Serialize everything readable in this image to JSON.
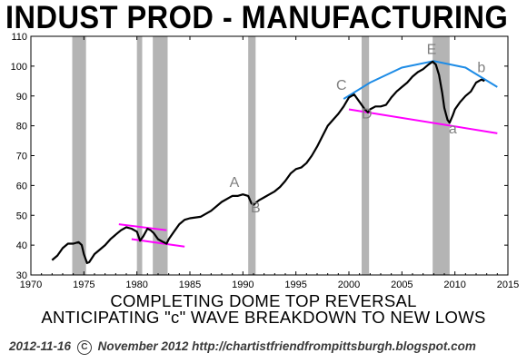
{
  "title": "INDUST PROD - MANUFACTURING",
  "captions": [
    "COMPLETING DOME TOP REVERSAL",
    "ANTICIPATING \"c\" WAVE BREAKDOWN TO NEW LOWS"
  ],
  "footer": {
    "date": "2012-11-16",
    "copyright_symbol": "C",
    "text": "November 2012  http://chartistfriendfrompittsburgh.blogspot.com"
  },
  "colors": {
    "line": "#000000",
    "recession": "#b4b4b4",
    "trendline": "#ff00ff",
    "dome": "#1e8ce6",
    "wave_label": "#808080"
  },
  "chart_data": {
    "type": "line",
    "xlim": [
      1970,
      2015
    ],
    "ylim": [
      30,
      110
    ],
    "x_ticks": [
      1970,
      1975,
      1980,
      1985,
      1990,
      1995,
      2000,
      2005,
      2010,
      2015
    ],
    "y_ticks": [
      30,
      40,
      50,
      60,
      70,
      80,
      90,
      100,
      110
    ],
    "grid": false,
    "series": [
      {
        "values": [
          [
            1972.0,
            35
          ],
          [
            1972.5,
            36.5
          ],
          [
            1973.0,
            39
          ],
          [
            1973.5,
            40.5
          ],
          [
            1974.0,
            40.5
          ],
          [
            1974.5,
            41
          ],
          [
            1974.8,
            40
          ],
          [
            1975.0,
            37
          ],
          [
            1975.3,
            34
          ],
          [
            1975.5,
            34.3
          ],
          [
            1976.0,
            37
          ],
          [
            1976.5,
            38.5
          ],
          [
            1977.0,
            40
          ],
          [
            1977.5,
            42
          ],
          [
            1978.0,
            43.5
          ],
          [
            1978.5,
            45
          ],
          [
            1979.0,
            46
          ],
          [
            1979.5,
            45.5
          ],
          [
            1980.0,
            44.5
          ],
          [
            1980.3,
            41.5
          ],
          [
            1980.6,
            43
          ],
          [
            1981.0,
            45.5
          ],
          [
            1981.3,
            45
          ],
          [
            1981.6,
            44
          ],
          [
            1982.0,
            42
          ],
          [
            1982.5,
            41
          ],
          [
            1982.8,
            40.5
          ],
          [
            1983.0,
            42
          ],
          [
            1983.5,
            44.5
          ],
          [
            1984.0,
            47
          ],
          [
            1984.5,
            48.5
          ],
          [
            1985.0,
            49
          ],
          [
            1986.0,
            49.5
          ],
          [
            1987.0,
            51.5
          ],
          [
            1988.0,
            54.5
          ],
          [
            1989.0,
            56.5
          ],
          [
            1989.5,
            56.5
          ],
          [
            1990.0,
            57
          ],
          [
            1990.5,
            56.5
          ],
          [
            1990.8,
            54
          ],
          [
            1991.0,
            53.5
          ],
          [
            1991.5,
            55
          ],
          [
            1992.0,
            56
          ],
          [
            1992.5,
            57
          ],
          [
            1993.0,
            58
          ],
          [
            1993.5,
            59.5
          ],
          [
            1994.0,
            61.5
          ],
          [
            1994.5,
            64
          ],
          [
            1995.0,
            65.5
          ],
          [
            1995.5,
            66
          ],
          [
            1996.0,
            67.5
          ],
          [
            1996.5,
            70
          ],
          [
            1997.0,
            73
          ],
          [
            1997.5,
            76.5
          ],
          [
            1998.0,
            80
          ],
          [
            1998.5,
            82
          ],
          [
            1999.0,
            84
          ],
          [
            1999.5,
            86.5
          ],
          [
            2000.0,
            89.5
          ],
          [
            2000.5,
            90.5
          ],
          [
            2001.0,
            88
          ],
          [
            2001.5,
            85.5
          ],
          [
            2001.8,
            84.5
          ],
          [
            2002.0,
            85.5
          ],
          [
            2002.5,
            86.5
          ],
          [
            2003.0,
            86.5
          ],
          [
            2003.5,
            87
          ],
          [
            2004.0,
            89.5
          ],
          [
            2004.5,
            91.5
          ],
          [
            2005.0,
            93
          ],
          [
            2005.5,
            94.5
          ],
          [
            2006.0,
            96.5
          ],
          [
            2006.5,
            98
          ],
          [
            2007.0,
            99
          ],
          [
            2007.5,
            100.5
          ],
          [
            2007.9,
            101.5
          ],
          [
            2008.2,
            100.5
          ],
          [
            2008.5,
            97
          ],
          [
            2008.8,
            91
          ],
          [
            2009.0,
            86
          ],
          [
            2009.3,
            82
          ],
          [
            2009.5,
            81
          ],
          [
            2009.8,
            83.5
          ],
          [
            2010.0,
            85.5
          ],
          [
            2010.5,
            88
          ],
          [
            2011.0,
            90
          ],
          [
            2011.5,
            91.5
          ],
          [
            2012.0,
            94.5
          ],
          [
            2012.5,
            95.5
          ],
          [
            2012.8,
            95
          ]
        ]
      }
    ],
    "recessions": [
      [
        1973.9,
        1975.2
      ],
      [
        1980.0,
        1980.5
      ],
      [
        1981.5,
        1982.9
      ],
      [
        1990.5,
        1991.2
      ],
      [
        2001.2,
        2001.9
      ],
      [
        2007.9,
        2009.5
      ]
    ],
    "trendlines": [
      [
        [
          1978.3,
          47
        ],
        [
          1982.8,
          45
        ]
      ],
      [
        [
          1979.5,
          42
        ],
        [
          1984.5,
          39.5
        ]
      ],
      [
        [
          2000.0,
          85.5
        ],
        [
          2014.0,
          77.5
        ]
      ]
    ],
    "dome_curve": [
      [
        1999.5,
        89
      ],
      [
        2002.0,
        94.5
      ],
      [
        2005.0,
        99.5
      ],
      [
        2008.0,
        101.7
      ],
      [
        2011.0,
        99.5
      ],
      [
        2014.0,
        93
      ]
    ],
    "annotations": [
      {
        "text": "A",
        "x": 1989.2,
        "y": 59.5
      },
      {
        "text": "B",
        "x": 1991.2,
        "y": 51
      },
      {
        "text": "C",
        "x": 1999.3,
        "y": 92
      },
      {
        "text": "D",
        "x": 2001.7,
        "y": 82.5
      },
      {
        "text": "E",
        "x": 2007.8,
        "y": 104
      },
      {
        "text": "a",
        "x": 2009.8,
        "y": 77.5
      },
      {
        "text": "b",
        "x": 2012.5,
        "y": 98
      }
    ]
  }
}
